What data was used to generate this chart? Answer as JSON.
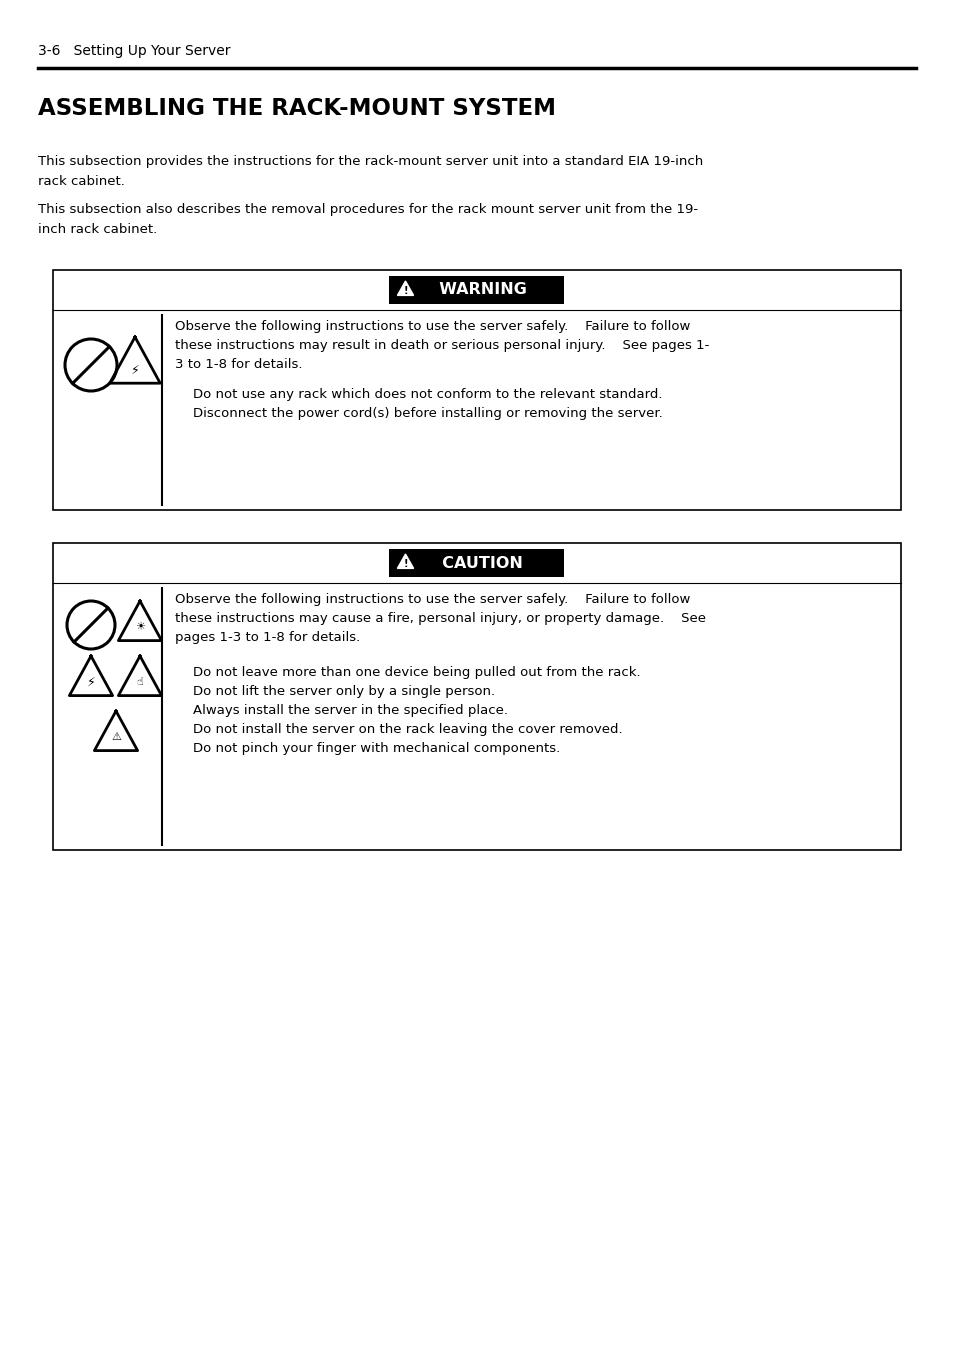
{
  "bg_color": "#ffffff",
  "header_text": "3-6   Setting Up Your Server",
  "title": "ASSEMBLING THE RACK-MOUNT SYSTEM",
  "para1_line1": "This subsection provides the instructions for the rack-mount server unit into a standard EIA 19-inch",
  "para1_line2": "rack cabinet.",
  "para2_line1": "This subsection also describes the removal procedures for the rack mount server unit from the 19-",
  "para2_line2": "inch rack cabinet.",
  "warning_label": "  WARNING",
  "warning_body1_line1": "Observe the following instructions to use the server safely.    Failure to follow",
  "warning_body1_line2": "these instructions may result in death or serious personal injury.    See pages 1-",
  "warning_body1_line3": "3 to 1-8 for details.",
  "warning_bullet1": "Do not use any rack which does not conform to the relevant standard.",
  "warning_bullet2": "Disconnect the power cord(s) before installing or removing the server.",
  "caution_label": "  CAUTION",
  "caution_body1_line1": "Observe the following instructions to use the server safely.    Failure to follow",
  "caution_body1_line2": "these instructions may cause a fire, personal injury, or property damage.    See",
  "caution_body1_line3": "pages 1-3 to 1-8 for details.",
  "caution_bullet1": "Do not leave more than one device being pulled out from the rack.",
  "caution_bullet2": "Do not lift the server only by a single person.",
  "caution_bullet3": "Always install the server in the specified place.",
  "caution_bullet4": "Do not install the server on the rack leaving the cover removed.",
  "caution_bullet5": "Do not pinch your finger with mechanical components."
}
